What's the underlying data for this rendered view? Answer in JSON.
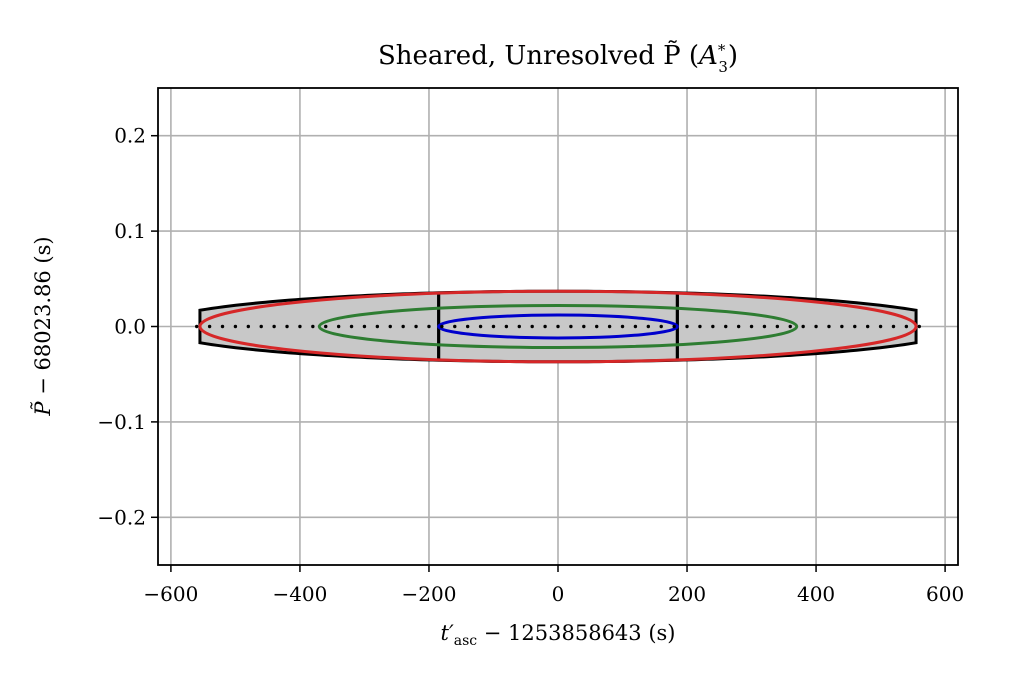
{
  "chart_data": {
    "type": "scatter",
    "title": "Sheared, Unresolved P̃ (A₃*)",
    "xlabel": "t′asc − 1253858643 (s)",
    "ylabel": "P̃ − 68023.86 (s)",
    "xlim": [
      -620,
      620
    ],
    "ylim": [
      -0.25,
      0.25
    ],
    "xticks": [
      -600,
      -400,
      -200,
      0,
      200,
      400,
      600
    ],
    "xtick_labels": [
      "−600",
      "−400",
      "−200",
      "0",
      "200",
      "400",
      "600"
    ],
    "yticks": [
      -0.2,
      -0.1,
      0.0,
      0.1,
      0.2
    ],
    "ytick_labels": [
      "−0.2",
      "−0.1",
      "0.0",
      "0.1",
      "0.2"
    ],
    "grid": true,
    "shaded_region": {
      "color": "#c8c8c8",
      "outer_half_width": 555,
      "inner_half_width": 185,
      "half_height_center": 0.037,
      "half_height_edge": 0.017
    },
    "ellipses": [
      {
        "color": "#d62728",
        "x_half_width": 555,
        "y_half_height": 0.037
      },
      {
        "color": "#2e7d32",
        "x_half_width": 370,
        "y_half_height": 0.022
      },
      {
        "color": "#0000cc",
        "x_half_width": 185,
        "y_half_height": 0.012
      }
    ],
    "dotted_points": {
      "color": "#000000",
      "x_start": -560,
      "x_end": 560,
      "step": 20,
      "y": 0.0
    }
  }
}
